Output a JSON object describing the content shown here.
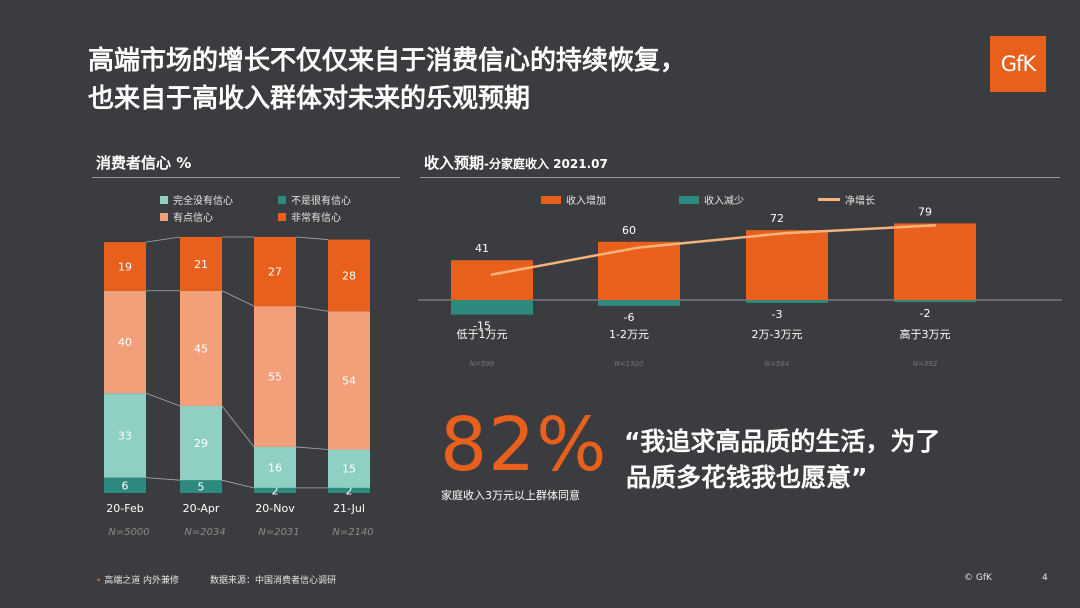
{
  "title": {
    "line1": "高端市场的增长不仅仅来自于消费信心的持续恢复，",
    "line2": "也来自于高收入群体对未来的乐观预期"
  },
  "logo": "GfK",
  "left_section": {
    "title": "消费者信心 %"
  },
  "right_section": {
    "title_main": "收入预期",
    "title_sub": "-分家庭收入 2021.07"
  },
  "colors": {
    "background": "#3b3c3f",
    "orange": "#e8601c",
    "light_orange": "#f3a07a",
    "light_teal": "#8fcfc4",
    "dark_teal": "#2e8a7e",
    "net_line": "#f4b37a"
  },
  "chart_data": [
    {
      "type": "bar",
      "stacked": true,
      "title": "消费者信心 %",
      "categories": [
        "20-Feb",
        "20-Apr",
        "20-Nov",
        "21-Jul"
      ],
      "sample_sizes": [
        "N=5000",
        "N=2034",
        "N=2031",
        "N=2140"
      ],
      "series": [
        {
          "name": "不是很有信心",
          "values": [
            6,
            5,
            2,
            2
          ]
        },
        {
          "name": "完全没有信心",
          "values": [
            33,
            29,
            16,
            15
          ]
        },
        {
          "name": "有点信心",
          "values": [
            40,
            45,
            55,
            54
          ]
        },
        {
          "name": "非常有信心",
          "values": [
            19,
            21,
            27,
            28
          ]
        }
      ],
      "legend": [
        "完全没有信心",
        "不是很有信心",
        "有点信心",
        "非常有信心"
      ],
      "legend_position": "top"
    },
    {
      "type": "bar",
      "title": "收入预期-分家庭收入 2021.07",
      "categories": [
        "低于1万元",
        "1-2万元",
        "2万-3万元",
        "高于3万元"
      ],
      "sample_sizes": [
        "N=599",
        "N=1320",
        "N=584",
        "N=392"
      ],
      "series": [
        {
          "name": "收入增加",
          "values": [
            41,
            60,
            72,
            79
          ]
        },
        {
          "name": "收入减少",
          "values": [
            -15,
            -6,
            -3,
            -2
          ]
        },
        {
          "name": "净增长",
          "type": "line",
          "values": [
            26,
            54,
            69,
            77
          ]
        }
      ],
      "legend_position": "top"
    }
  ],
  "highlight": {
    "value": "82%",
    "caption": "家庭收入3万元以上群体同意"
  },
  "quote": {
    "line1": "“我追求高品质的生活，为了",
    "line2": "品质多花钱我也愿意”"
  },
  "footer": {
    "bullet": "•",
    "left": "高端之道 内外兼修",
    "source": "数据来源：中国消费者信心调研",
    "copyright": "© GfK",
    "page": "4"
  }
}
